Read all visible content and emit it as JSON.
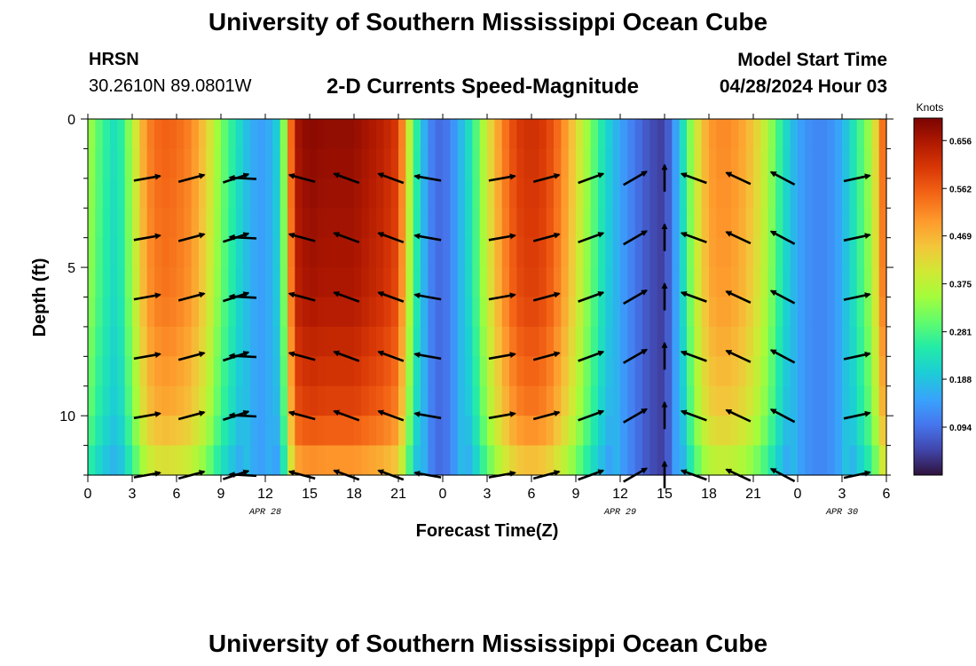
{
  "header": {
    "title": "University of Southern Mississippi Ocean Cube",
    "station": "HRSN",
    "coordinates": "30.2610N  89.0801W",
    "subtitle": "2-D Currents Speed-Magnitude",
    "model_start_label": "Model Start Time",
    "model_start_value": "04/28/2024 Hour 03"
  },
  "footer": {
    "title": "University of Southern Mississippi Ocean Cube"
  },
  "chart_data": {
    "type": "heatmap",
    "title": "2-D Currents Speed-Magnitude",
    "xlabel": "Forecast Time(Z)",
    "ylabel": "Depth (ft)",
    "xlim_hours": [
      0,
      54
    ],
    "ylim": [
      12,
      0
    ],
    "x_tick_labels": [
      "0",
      "3",
      "6",
      "9",
      "12",
      "15",
      "18",
      "21",
      "0",
      "3",
      "6",
      "9",
      "12",
      "15",
      "18",
      "21",
      "0",
      "3",
      "6"
    ],
    "y_ticks": [
      0,
      5,
      10
    ],
    "date_labels": [
      {
        "text": "APR 28",
        "hour": 12
      },
      {
        "text": "APR 29",
        "hour": 36
      },
      {
        "text": "APR 30",
        "hour": 51
      }
    ],
    "colorbar": {
      "title": "Knots",
      "min": 0,
      "max": 0.7,
      "ticks": [
        "0.656",
        "0.562",
        "0.469",
        "0.375",
        "0.281",
        "0.188",
        "0.094"
      ]
    },
    "speed_profile": {
      "hours": [
        0,
        1,
        2,
        3,
        4,
        5,
        6,
        7,
        8,
        9,
        10,
        11,
        12,
        13,
        14,
        15,
        16,
        17,
        18,
        19,
        20,
        21,
        22,
        23,
        24,
        25,
        26,
        27,
        28,
        29,
        30,
        31,
        32,
        33,
        34,
        35,
        36,
        37,
        38,
        39,
        40,
        41,
        42,
        43,
        44,
        45,
        46,
        47,
        48,
        49,
        50,
        51,
        52,
        53,
        54
      ],
      "knots": [
        0.36,
        0.27,
        0.22,
        0.36,
        0.52,
        0.56,
        0.55,
        0.52,
        0.44,
        0.32,
        0.24,
        0.16,
        0.14,
        0.22,
        0.66,
        0.69,
        0.68,
        0.68,
        0.68,
        0.66,
        0.64,
        0.6,
        0.3,
        0.12,
        0.08,
        0.15,
        0.25,
        0.4,
        0.52,
        0.6,
        0.62,
        0.6,
        0.53,
        0.43,
        0.32,
        0.22,
        0.15,
        0.1,
        0.06,
        0.04,
        0.18,
        0.38,
        0.5,
        0.52,
        0.5,
        0.45,
        0.36,
        0.24,
        0.15,
        0.12,
        0.12,
        0.16,
        0.26,
        0.36,
        0.6
      ]
    },
    "depth_factor": [
      {
        "depth": 0,
        "factor": 1.0
      },
      {
        "depth": 6,
        "factor": 0.96
      },
      {
        "depth": 10,
        "factor": 0.86
      },
      {
        "depth": 12,
        "factor": 0.7
      }
    ],
    "vectors": {
      "depths": [
        2,
        4,
        6,
        8,
        10,
        12
      ],
      "columns": [
        {
          "hour": 4,
          "deg": -10
        },
        {
          "hour": 7,
          "deg": -15
        },
        {
          "hour": 10,
          "deg": -18
        },
        {
          "hour": 10.5,
          "deg": 183
        },
        {
          "hour": 14.5,
          "deg": 195
        },
        {
          "hour": 17.5,
          "deg": 200
        },
        {
          "hour": 20.5,
          "deg": 200
        },
        {
          "hour": 23,
          "deg": 190
        },
        {
          "hour": 28,
          "deg": -10
        },
        {
          "hour": 31,
          "deg": -15
        },
        {
          "hour": 34,
          "deg": -20
        },
        {
          "hour": 37,
          "deg": -30
        },
        {
          "hour": 39,
          "deg": -90
        },
        {
          "hour": 41,
          "deg": 200
        },
        {
          "hour": 44,
          "deg": 205
        },
        {
          "hour": 47,
          "deg": 208
        },
        {
          "hour": 52,
          "deg": -12
        }
      ]
    }
  }
}
